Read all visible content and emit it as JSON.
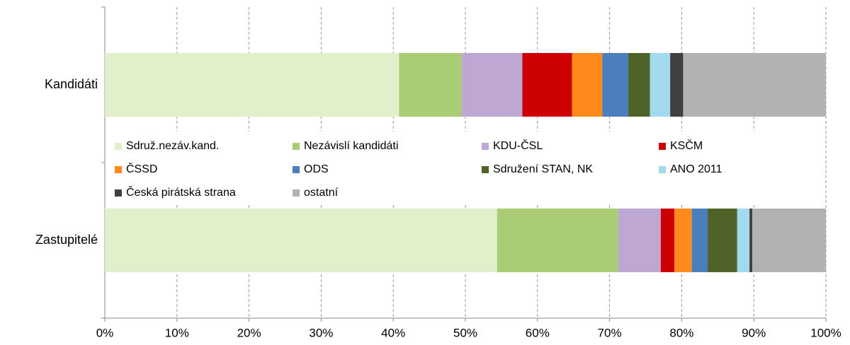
{
  "chart_data": {
    "type": "bar",
    "orientation": "horizontal",
    "stacked": true,
    "categories": [
      "Kandidáti",
      "Zastupitelé"
    ],
    "series": [
      {
        "name": "Sdruž.nezáv.kand.",
        "color": "#e1f0cb",
        "values": [
          40.8,
          54.4
        ]
      },
      {
        "name": "Nezávislí kandidáti",
        "color": "#aacc74",
        "values": [
          8.7,
          16.8
        ]
      },
      {
        "name": "KDU-ČSL",
        "color": "#bfa7d3",
        "values": [
          8.4,
          5.9
        ]
      },
      {
        "name": "KSČM",
        "color": "#cc0000",
        "values": [
          6.9,
          1.9
        ]
      },
      {
        "name": "ČSSD",
        "color": "#ff8a1c",
        "values": [
          4.2,
          2.4
        ]
      },
      {
        "name": "ODS",
        "color": "#4a7ebd",
        "values": [
          3.6,
          2.2
        ]
      },
      {
        "name": "Sdružení STAN, NK",
        "color": "#4f6228",
        "values": [
          3.0,
          4.1
        ]
      },
      {
        "name": "ANO 2011",
        "color": "#a2d9ef",
        "values": [
          2.8,
          1.7
        ]
      },
      {
        "name": "Česká pirátská strana",
        "color": "#404040",
        "values": [
          1.8,
          0.4
        ]
      },
      {
        "name": "ostatní",
        "color": "#b2b2b2",
        "values": [
          19.8,
          10.2
        ]
      }
    ],
    "xlim": [
      0,
      100
    ],
    "xticks": [
      {
        "value": 0,
        "label": "0%"
      },
      {
        "value": 10,
        "label": "10%"
      },
      {
        "value": 20,
        "label": "20%"
      },
      {
        "value": 30,
        "label": "30%"
      },
      {
        "value": 40,
        "label": "40%"
      },
      {
        "value": 50,
        "label": "50%"
      },
      {
        "value": 60,
        "label": "60%"
      },
      {
        "value": 70,
        "label": "70%"
      },
      {
        "value": 80,
        "label": "80%"
      },
      {
        "value": 90,
        "label": "90%"
      },
      {
        "value": 100,
        "label": "100%"
      }
    ],
    "grid": true,
    "legend": "center"
  }
}
